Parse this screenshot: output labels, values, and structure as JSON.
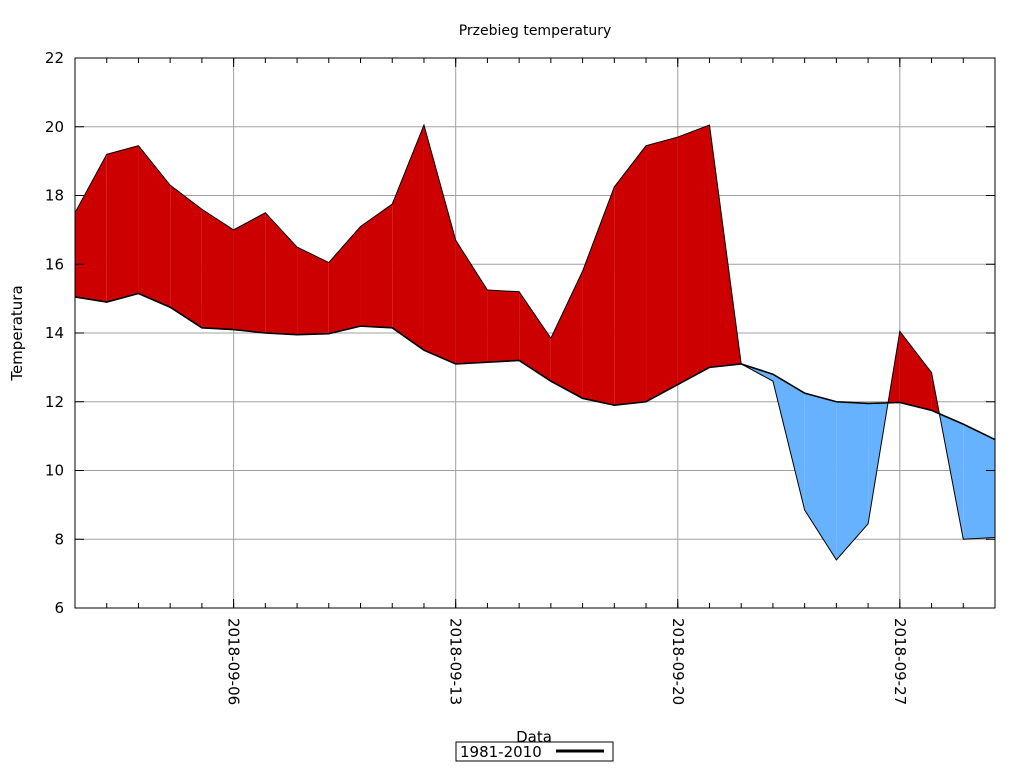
{
  "chart_data": {
    "type": "area",
    "title": "Przebieg temperatury",
    "xlabel": "Data",
    "ylabel": "Temperatura",
    "ylim": [
      6,
      22
    ],
    "xlim": [
      "2018-09-01",
      "2018-09-30"
    ],
    "y_ticks": [
      "6",
      "8",
      "10",
      "12",
      "14",
      "16",
      "18",
      "20",
      "22"
    ],
    "x_ticks": [
      "2018-09-06",
      "2018-09-13",
      "2018-09-20",
      "2018-09-27"
    ],
    "grid": true,
    "legend_position": "bottom-center",
    "colors": {
      "above_normal": "#cc0000",
      "below_normal": "#66b2ff",
      "normal_line": "#000000",
      "grid": "#a0a0a0"
    },
    "dates": [
      "2018-09-01",
      "2018-09-02",
      "2018-09-03",
      "2018-09-04",
      "2018-09-05",
      "2018-09-06",
      "2018-09-07",
      "2018-09-08",
      "2018-09-09",
      "2018-09-10",
      "2018-09-11",
      "2018-09-12",
      "2018-09-13",
      "2018-09-14",
      "2018-09-15",
      "2018-09-16",
      "2018-09-17",
      "2018-09-18",
      "2018-09-19",
      "2018-09-20",
      "2018-09-21",
      "2018-09-22",
      "2018-09-23",
      "2018-09-24",
      "2018-09-25",
      "2018-09-26",
      "2018-09-27",
      "2018-09-28",
      "2018-09-29",
      "2018-09-30"
    ],
    "series": [
      {
        "name": "",
        "values": [
          17.5,
          19.2,
          19.45,
          18.3,
          17.6,
          17.0,
          17.5,
          16.5,
          16.05,
          17.1,
          17.75,
          20.05,
          16.7,
          15.25,
          15.2,
          13.85,
          15.8,
          18.25,
          19.45,
          19.7,
          20.05,
          13.1,
          12.6,
          8.85,
          7.4,
          8.45,
          14.05,
          12.85,
          8.0,
          8.05
        ]
      },
      {
        "name": "1981-2010",
        "values": [
          15.05,
          14.9,
          15.15,
          14.75,
          14.15,
          14.1,
          14.0,
          13.95,
          13.98,
          14.2,
          14.15,
          13.5,
          13.1,
          13.15,
          13.2,
          12.6,
          12.1,
          11.9,
          12.0,
          12.5,
          13.0,
          13.1,
          12.8,
          12.25,
          12.0,
          11.95,
          11.98,
          11.75,
          11.35,
          10.9
        ]
      }
    ]
  }
}
